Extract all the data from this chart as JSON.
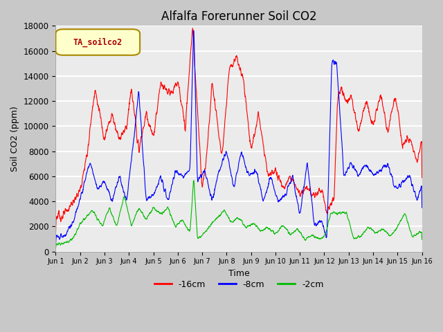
{
  "title": "Alfalfa Forerunner Soil CO2",
  "xlabel": "Time",
  "ylabel": "Soil CO2 (ppm)",
  "legend_label": "TA_soilco2",
  "series_labels": [
    "-16cm",
    "-8cm",
    "-2cm"
  ],
  "series_colors": [
    "#ff0000",
    "#0000ff",
    "#00bb00"
  ],
  "ylim": [
    0,
    18000
  ],
  "yticks": [
    0,
    2000,
    4000,
    6000,
    8000,
    10000,
    12000,
    14000,
    16000,
    18000
  ],
  "xtick_labels": [
    "Jun 1",
    "Jun 2",
    "Jun 3",
    "Jun 4",
    "Jun 5",
    "Jun 6",
    "Jun 7",
    "Jun 8",
    "Jun 9",
    "Jun 10",
    "Jun 11",
    "Jun 12",
    "Jun 13",
    "Jun 14",
    "Jun 15",
    "Jun 16"
  ],
  "plot_bg_color": "#ebebeb",
  "fig_bg_color": "#c8c8c8",
  "legend_box_color": "#ffffcc",
  "legend_box_edge": "#aa8800",
  "title_fontsize": 12,
  "axis_label_fontsize": 9,
  "tick_fontsize": 8.5
}
